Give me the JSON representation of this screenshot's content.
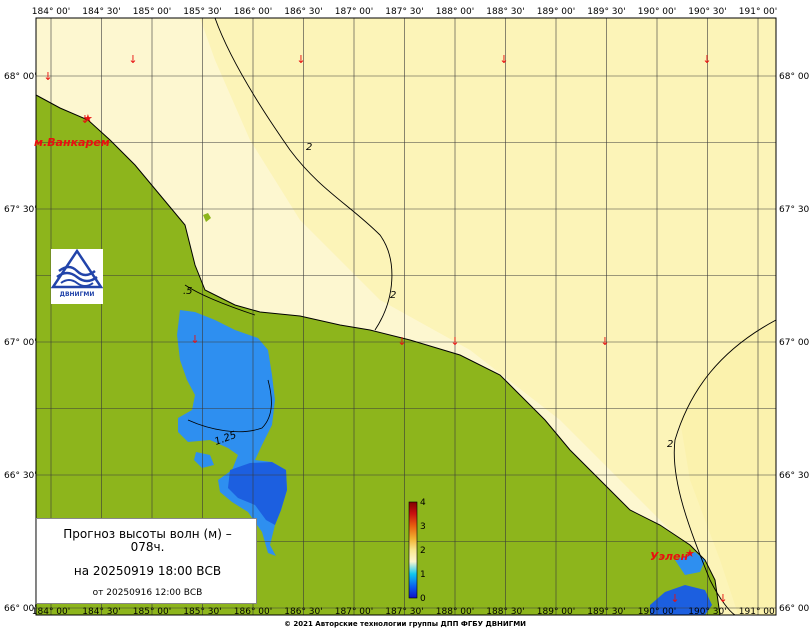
{
  "map": {
    "longitude_labels": [
      "184° 00'",
      "184° 30'",
      "185° 00'",
      "185° 30'",
      "186° 00'",
      "186° 30'",
      "187° 00'",
      "187° 30'",
      "188° 00'",
      "188° 30'",
      "189° 00'",
      "189° 30'",
      "190° 00'",
      "190° 30'",
      "191° 00'"
    ],
    "latitude_labels": [
      "68° 00'",
      "67° 30'",
      "67° 00'",
      "66° 30'",
      "66° 00'"
    ],
    "place_names": [
      "м.Ванкарем",
      "Уэлен"
    ],
    "contour_labels": [
      "2",
      "2",
      "1.25",
      "2",
      ".5"
    ],
    "colors": {
      "land": "#8db51c",
      "sea_pale": "#fdf7d0",
      "sea_light": "#fcf4b8",
      "water_blue": "#2e8ff0",
      "water_deep": "#1c5fe0",
      "arrow": "#e81010",
      "grid": "#3a3a3a"
    }
  },
  "colorbar": {
    "tick_labels": [
      "4",
      "3",
      "2",
      "1",
      "0"
    ],
    "min": 0,
    "max": 4
  },
  "info": {
    "title": "Прогноз высоты волн (м) –",
    "lead": "078ч.",
    "valid": "на 20250919 18:00 ВСВ",
    "issued": "от 20250916 12:00 ВСВ"
  },
  "logo": {
    "caption": "ДВНИГМИ",
    "icon": "dvnigmi-logo-icon"
  },
  "footer": "© 2021 Авторские технологии группы ДПП ФГБУ ДВНИГМИ"
}
